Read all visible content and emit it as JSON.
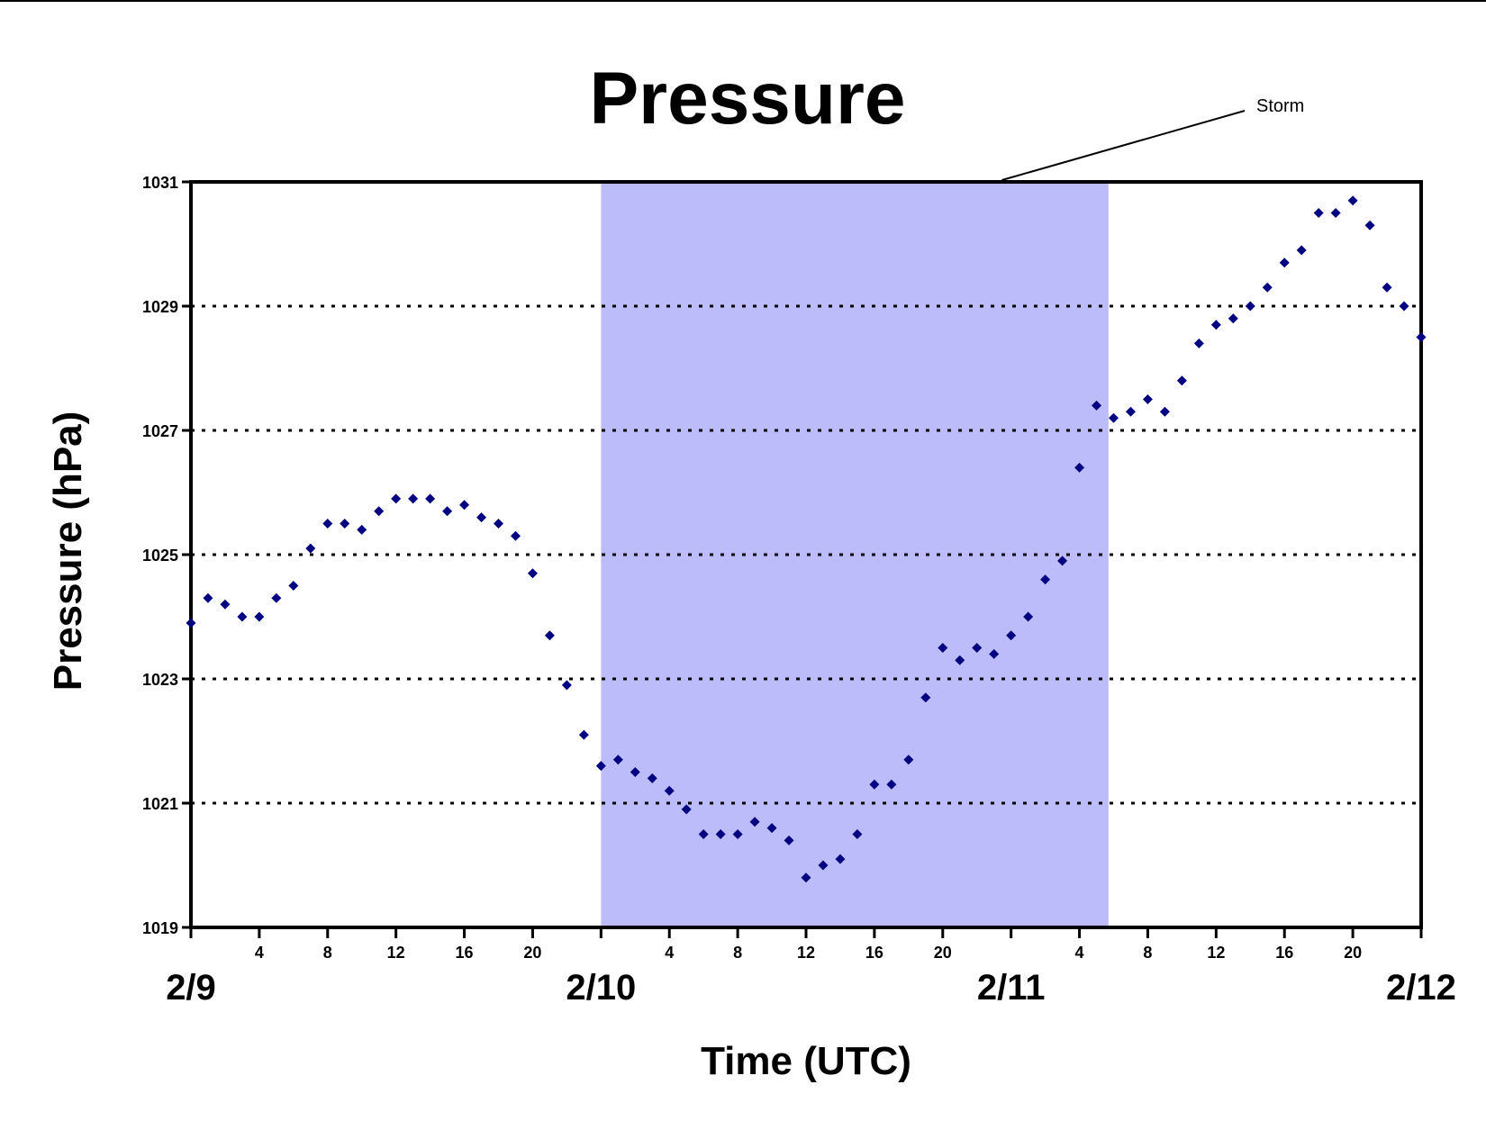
{
  "chart_data": {
    "type": "scatter",
    "title": "Pressure",
    "xlabel": "Time (UTC)",
    "ylabel": "Pressure (hPa)",
    "x_unit": "hours since 2/9 00 UTC",
    "xlim": [
      0,
      72
    ],
    "ylim": [
      1019,
      1031
    ],
    "y_ticks": [
      1019,
      1021,
      1023,
      1025,
      1027,
      1029,
      1031
    ],
    "x_hour_ticks": [
      {
        "x": 4,
        "label": "4"
      },
      {
        "x": 8,
        "label": "8"
      },
      {
        "x": 12,
        "label": "12"
      },
      {
        "x": 16,
        "label": "16"
      },
      {
        "x": 20,
        "label": "20"
      },
      {
        "x": 28,
        "label": "4"
      },
      {
        "x": 32,
        "label": "8"
      },
      {
        "x": 36,
        "label": "12"
      },
      {
        "x": 40,
        "label": "16"
      },
      {
        "x": 44,
        "label": "20"
      },
      {
        "x": 52,
        "label": "4"
      },
      {
        "x": 56,
        "label": "8"
      },
      {
        "x": 60,
        "label": "12"
      },
      {
        "x": 64,
        "label": "16"
      },
      {
        "x": 68,
        "label": "20"
      }
    ],
    "x_date_labels": [
      {
        "x": 0,
        "label": "2/9"
      },
      {
        "x": 24,
        "label": "2/10"
      },
      {
        "x": 48,
        "label": "2/11"
      },
      {
        "x": 72,
        "label": "2/12"
      }
    ],
    "grid": {
      "horizontal": true,
      "style": "dotted"
    },
    "shaded_region": {
      "x_start": 24,
      "x_end": 53.7,
      "color": "#bcbcfa",
      "label": "Storm"
    },
    "colors": {
      "marker": "#000080",
      "shade": "#bcbcfa",
      "grid": "#000000"
    },
    "series": [
      {
        "marker": "diamond",
        "points": [
          [
            0,
            1023.9
          ],
          [
            1,
            1024.3
          ],
          [
            2,
            1024.2
          ],
          [
            3,
            1024.0
          ],
          [
            4,
            1024.0
          ],
          [
            5,
            1024.3
          ],
          [
            6,
            1024.5
          ],
          [
            7,
            1025.1
          ],
          [
            8,
            1025.5
          ],
          [
            9,
            1025.5
          ],
          [
            10,
            1025.4
          ],
          [
            11,
            1025.7
          ],
          [
            12,
            1025.9
          ],
          [
            13,
            1025.9
          ],
          [
            14,
            1025.9
          ],
          [
            15,
            1025.7
          ],
          [
            16,
            1025.8
          ],
          [
            17,
            1025.6
          ],
          [
            18,
            1025.5
          ],
          [
            19,
            1025.3
          ],
          [
            20,
            1024.7
          ],
          [
            21,
            1023.7
          ],
          [
            22,
            1022.9
          ],
          [
            23,
            1022.1
          ],
          [
            24,
            1021.6
          ],
          [
            25,
            1021.7
          ],
          [
            26,
            1021.5
          ],
          [
            27,
            1021.4
          ],
          [
            28,
            1021.2
          ],
          [
            29,
            1020.9
          ],
          [
            30,
            1020.5
          ],
          [
            31,
            1020.5
          ],
          [
            32,
            1020.5
          ],
          [
            33,
            1020.7
          ],
          [
            34,
            1020.6
          ],
          [
            35,
            1020.4
          ],
          [
            36,
            1019.8
          ],
          [
            37,
            1020.0
          ],
          [
            38,
            1020.1
          ],
          [
            39,
            1020.5
          ],
          [
            40,
            1021.3
          ],
          [
            41,
            1021.3
          ],
          [
            42,
            1021.7
          ],
          [
            43,
            1022.7
          ],
          [
            44,
            1023.5
          ],
          [
            45,
            1023.3
          ],
          [
            46,
            1023.5
          ],
          [
            47,
            1023.4
          ],
          [
            48,
            1023.7
          ],
          [
            49,
            1024.0
          ],
          [
            50,
            1024.6
          ],
          [
            51,
            1024.9
          ],
          [
            52,
            1026.4
          ],
          [
            53,
            1027.4
          ],
          [
            54,
            1027.2
          ],
          [
            55,
            1027.3
          ],
          [
            56,
            1027.5
          ],
          [
            57,
            1027.3
          ],
          [
            58,
            1027.8
          ],
          [
            59,
            1028.4
          ],
          [
            60,
            1028.7
          ],
          [
            61,
            1028.8
          ],
          [
            62,
            1029.0
          ],
          [
            63,
            1029.3
          ],
          [
            64,
            1029.7
          ],
          [
            65,
            1029.9
          ],
          [
            66,
            1030.5
          ],
          [
            67,
            1030.5
          ],
          [
            68,
            1030.7
          ],
          [
            69,
            1030.3
          ],
          [
            70,
            1029.3
          ],
          [
            71,
            1029.0
          ],
          [
            72,
            1028.5
          ]
        ]
      }
    ]
  }
}
